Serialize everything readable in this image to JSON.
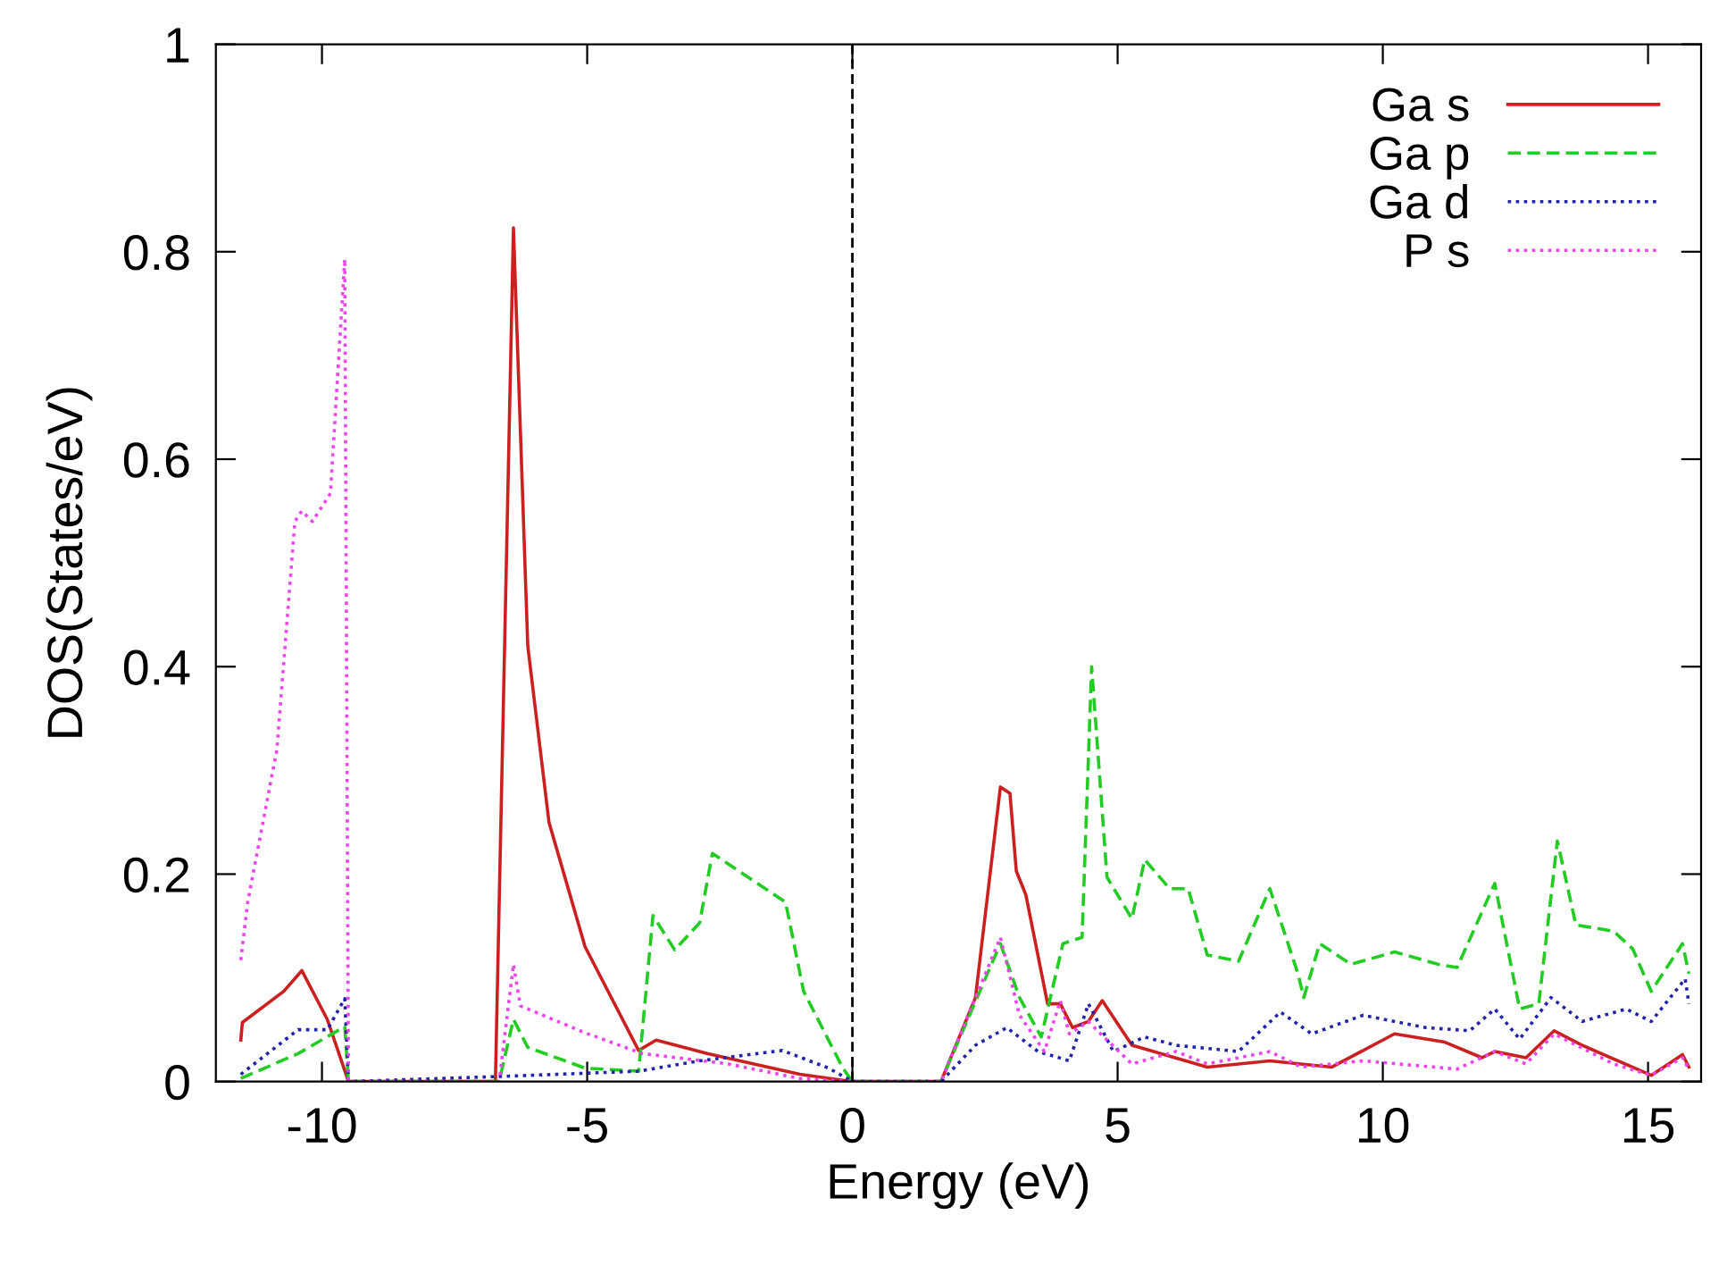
{
  "chart_data": {
    "type": "line",
    "xlabel": "Energy (eV)",
    "ylabel": "DOS(States/eV)",
    "xlim": [
      -12,
      16
    ],
    "xticks": [
      -10,
      -5,
      0,
      5,
      10,
      15
    ],
    "ylim": [
      0,
      1
    ],
    "yticks": [
      0,
      0.2,
      0.4,
      0.6,
      0.8,
      1
    ],
    "grid": false,
    "legend": "top right",
    "marker": "none",
    "ref_lines": [
      {
        "axis": "x",
        "value": 0,
        "color": "#000000",
        "line_style": "dashed"
      }
    ],
    "series": [
      {
        "name": "Ga s",
        "color": "#cc2020",
        "line_style": "solid",
        "x": [
          -11.53,
          -11.5,
          -10.72,
          -10.38,
          -9.9,
          -9.5,
          -6.73,
          -6.39,
          -6.12,
          -5.72,
          -5.04,
          -4.03,
          -3.7,
          -2.74,
          -0.99,
          0,
          1.67,
          2.32,
          2.79,
          2.97,
          3.09,
          3.27,
          3.68,
          3.92,
          4.15,
          4.45,
          4.71,
          5.27,
          6.69,
          7.87,
          9.04,
          10.22,
          11.17,
          11.87,
          12.11,
          12.7,
          13.23,
          13.76,
          15.06,
          15.65,
          15.77
        ],
        "values": [
          0.04,
          0.057,
          0.087,
          0.107,
          0.06,
          0,
          0,
          0.823,
          0.42,
          0.25,
          0.13,
          0.03,
          0.04,
          0.027,
          0.007,
          0,
          0,
          0.081,
          0.284,
          0.278,
          0.203,
          0.18,
          0.075,
          0.075,
          0.052,
          0.058,
          0.078,
          0.035,
          0.014,
          0.02,
          0.014,
          0.046,
          0.038,
          0.023,
          0.029,
          0.023,
          0.049,
          0.035,
          0.006,
          0.026,
          0.014
        ]
      },
      {
        "name": "Ga p",
        "color": "#22cc22",
        "line_style": "dashed",
        "x": [
          -11.53,
          -10.45,
          -9.57,
          -9.5,
          -6.66,
          -6.39,
          -6.12,
          -5.04,
          -4.03,
          -3.76,
          -3.35,
          -2.88,
          -2.64,
          -1.26,
          -0.92,
          -0.18,
          0,
          1.67,
          2.79,
          3.15,
          3.56,
          3.97,
          4.33,
          4.51,
          4.8,
          5.27,
          5.51,
          5.98,
          6.33,
          6.69,
          7.28,
          7.87,
          8.4,
          8.51,
          8.81,
          9.4,
          10.22,
          11.05,
          11.4,
          12.11,
          12.58,
          12.94,
          13.29,
          13.64,
          14.35,
          14.71,
          15.06,
          15.65,
          15.77
        ],
        "values": [
          0.003,
          0.027,
          0.053,
          0,
          0,
          0.06,
          0.033,
          0.013,
          0.01,
          0.16,
          0.127,
          0.153,
          0.22,
          0.173,
          0.087,
          0.013,
          0,
          0,
          0.133,
          0.081,
          0.043,
          0.133,
          0.139,
          0.4,
          0.197,
          0.157,
          0.214,
          0.186,
          0.186,
          0.122,
          0.116,
          0.186,
          0.104,
          0.081,
          0.133,
          0.113,
          0.125,
          0.113,
          0.11,
          0.191,
          0.07,
          0.075,
          0.232,
          0.151,
          0.145,
          0.128,
          0.087,
          0.133,
          0.104
        ]
      },
      {
        "name": "Ga d",
        "color": "#2222aa",
        "line_style": "dotted",
        "x": [
          -11.53,
          -10.45,
          -9.9,
          -9.57,
          -9.5,
          -6.6,
          -4.03,
          -2.88,
          -1.32,
          -0.45,
          0,
          1.67,
          2.32,
          2.91,
          3.5,
          4.09,
          4.45,
          4.92,
          5.51,
          6.1,
          7.28,
          8.07,
          8.66,
          9.63,
          10.81,
          11.64,
          12.11,
          12.58,
          13.17,
          13.76,
          14.59,
          15.06,
          15.7,
          15.77
        ],
        "values": [
          0.007,
          0.05,
          0.05,
          0.08,
          0,
          0.005,
          0.01,
          0.02,
          0.03,
          0.013,
          0,
          0,
          0.035,
          0.052,
          0.029,
          0.02,
          0.075,
          0.029,
          0.043,
          0.035,
          0.029,
          0.067,
          0.046,
          0.064,
          0.052,
          0.049,
          0.07,
          0.041,
          0.081,
          0.058,
          0.07,
          0.058,
          0.099,
          0.075
        ]
      },
      {
        "name": "P s",
        "color": "#ee44ee",
        "line_style": "dotted",
        "x": [
          -11.53,
          -11.4,
          -10.85,
          -10.51,
          -10.38,
          -10.18,
          -9.84,
          -9.57,
          -9.5,
          -6.66,
          -6.39,
          -6.26,
          -5.04,
          -3.96,
          -2.34,
          -0.99,
          0,
          1.67,
          2.79,
          3.15,
          3.62,
          3.92,
          4.09,
          4.45,
          4.68,
          5.27,
          6.1,
          6.69,
          7.87,
          8.46,
          9.63,
          11.4,
          12.11,
          12.7,
          13.23,
          14.35,
          15.06,
          15.65,
          15.77
        ],
        "values": [
          0.117,
          0.173,
          0.32,
          0.54,
          0.55,
          0.54,
          0.567,
          0.793,
          0,
          0,
          0.113,
          0.073,
          0.047,
          0.027,
          0.017,
          0.003,
          0,
          0,
          0.139,
          0.064,
          0.029,
          0.078,
          0.046,
          0.058,
          0.046,
          0.017,
          0.029,
          0.017,
          0.029,
          0.014,
          0.02,
          0.012,
          0.029,
          0.017,
          0.046,
          0.017,
          0.006,
          0.023,
          0.012
        ]
      }
    ]
  }
}
